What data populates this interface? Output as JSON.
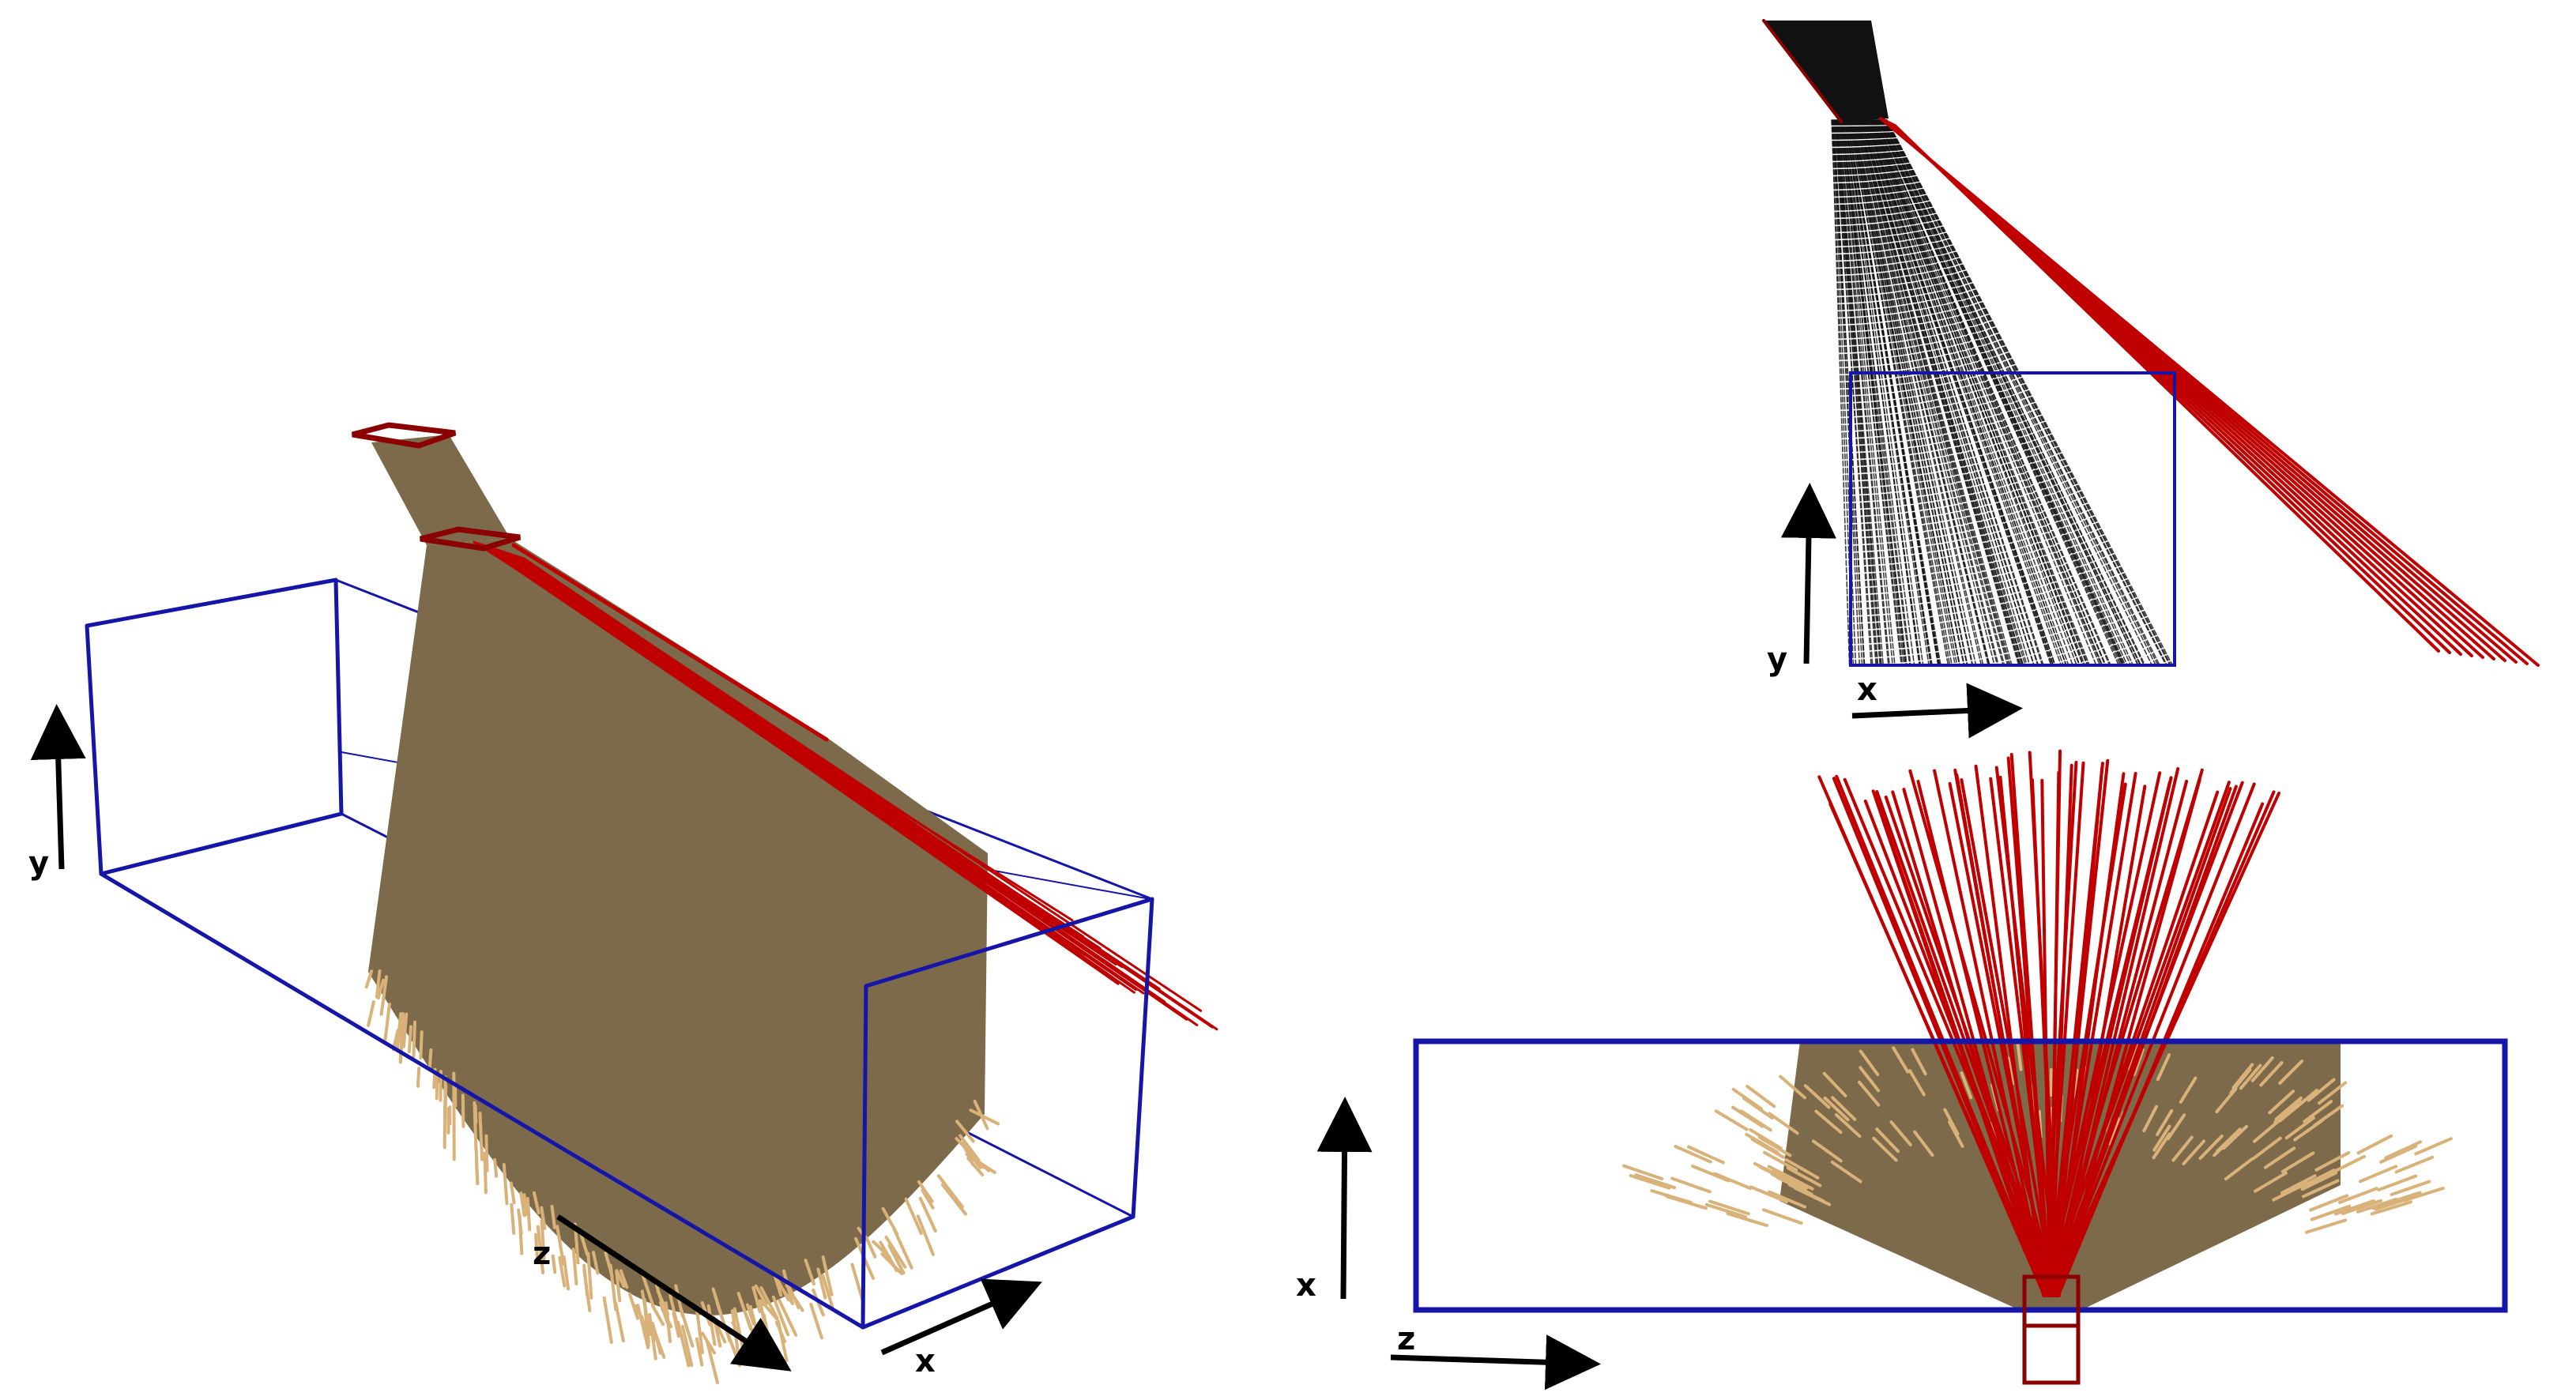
{
  "colors": {
    "box_outline": "#1515a8",
    "fan_fill": "#7d6a4b",
    "fan_edge": "#d9b27a",
    "red_rays": "#c00000",
    "dark_red": "#8b0000",
    "black_rays": "#111111",
    "axis_arrow": "#000000"
  },
  "panels": {
    "perspective": {
      "axis_labels": {
        "y": "y",
        "z": "z",
        "x": "x"
      }
    },
    "side_view": {
      "axis_labels": {
        "y": "y",
        "x": "x"
      }
    },
    "top_view": {
      "axis_labels": {
        "x": "x",
        "z": "z"
      }
    }
  }
}
